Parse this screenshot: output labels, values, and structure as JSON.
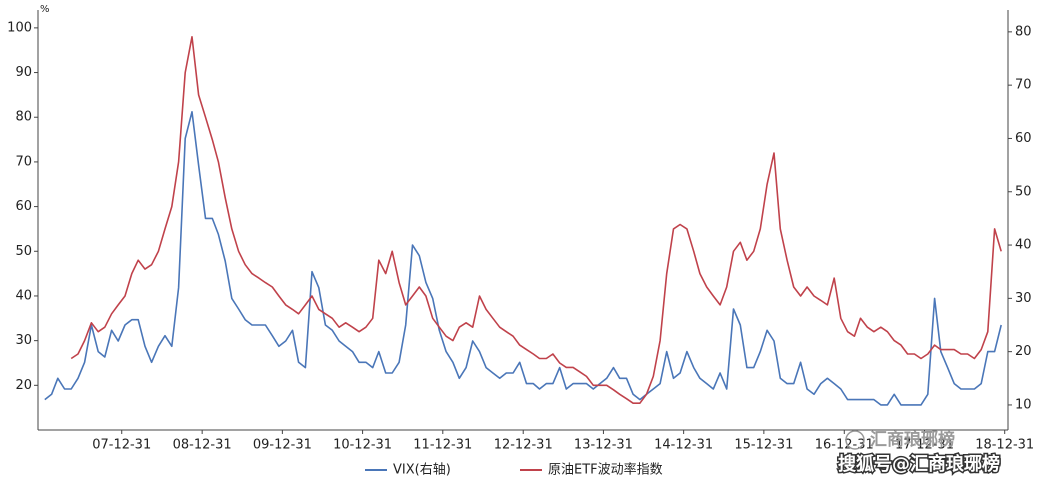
{
  "chart_data": {
    "type": "line",
    "y_label": "%",
    "x": [
      "07-01-15",
      "07-02-15",
      "07-03-15",
      "07-04-15",
      "07-05-15",
      "07-06-15",
      "07-07-15",
      "07-08-15",
      "07-09-15",
      "07-10-15",
      "07-11-15",
      "07-12-15",
      "08-01-15",
      "08-02-15",
      "08-03-15",
      "08-04-15",
      "08-05-15",
      "08-06-15",
      "08-07-15",
      "08-08-15",
      "08-09-15",
      "08-10-15",
      "08-11-15",
      "08-12-15",
      "09-01-15",
      "09-02-15",
      "09-03-15",
      "09-04-15",
      "09-05-15",
      "09-06-15",
      "09-07-15",
      "09-08-15",
      "09-09-15",
      "09-10-15",
      "09-11-15",
      "09-12-15",
      "10-01-15",
      "10-02-15",
      "10-03-15",
      "10-04-15",
      "10-05-15",
      "10-06-15",
      "10-07-15",
      "10-08-15",
      "10-09-15",
      "10-10-15",
      "10-11-15",
      "10-12-15",
      "11-01-15",
      "11-02-15",
      "11-03-15",
      "11-04-15",
      "11-05-15",
      "11-06-15",
      "11-07-15",
      "11-08-15",
      "11-09-15",
      "11-10-15",
      "11-11-15",
      "11-12-15",
      "12-01-15",
      "12-02-15",
      "12-03-15",
      "12-04-15",
      "12-05-15",
      "12-06-15",
      "12-07-15",
      "12-08-15",
      "12-09-15",
      "12-10-15",
      "12-11-15",
      "12-12-15",
      "13-01-15",
      "13-02-15",
      "13-03-15",
      "13-04-15",
      "13-05-15",
      "13-06-15",
      "13-07-15",
      "13-08-15",
      "13-09-15",
      "13-10-15",
      "13-11-15",
      "13-12-15",
      "14-01-15",
      "14-02-15",
      "14-03-15",
      "14-04-15",
      "14-05-15",
      "14-06-15",
      "14-07-15",
      "14-08-15",
      "14-09-15",
      "14-10-15",
      "14-11-15",
      "14-12-15",
      "15-01-15",
      "15-02-15",
      "15-03-15",
      "15-04-15",
      "15-05-15",
      "15-06-15",
      "15-07-15",
      "15-08-15",
      "15-09-15",
      "15-10-15",
      "15-11-15",
      "15-12-15",
      "16-01-15",
      "16-02-15",
      "16-03-15",
      "16-04-15",
      "16-05-15",
      "16-06-15",
      "16-07-15",
      "16-08-15",
      "16-09-15",
      "16-10-15",
      "16-11-15",
      "16-12-15",
      "17-01-15",
      "17-02-15",
      "17-03-15",
      "17-04-15",
      "17-05-15",
      "17-06-15",
      "17-07-15",
      "17-08-15",
      "17-09-15",
      "17-10-15",
      "17-11-15",
      "17-12-15",
      "18-01-15",
      "18-02-15",
      "18-03-15",
      "18-04-15",
      "18-05-15",
      "18-06-15",
      "18-07-15",
      "18-08-15",
      "18-09-15",
      "18-10-15",
      "18-11-15",
      "18-12-15"
    ],
    "xlim": [
      "06-12-15",
      "19-01-15"
    ],
    "xticks": [
      "07-12-31",
      "08-12-31",
      "09-12-31",
      "10-12-31",
      "11-12-31",
      "12-12-31",
      "13-12-31",
      "14-12-31",
      "15-12-31",
      "16-12-31",
      "17-12-31",
      "18-12-31"
    ],
    "ylim": [
      10,
      104
    ],
    "yticks": [
      20,
      30,
      40,
      50,
      60,
      70,
      80,
      90,
      100
    ],
    "y2lim": [
      5.3,
      84.1
    ],
    "y2ticks": [
      10,
      20,
      30,
      40,
      50,
      60,
      70,
      80
    ],
    "series": [
      {
        "name": "VIX(右轴)",
        "color": "#4a76b8",
        "axis": "y2",
        "values": [
          11,
          12,
          15,
          13,
          13,
          15,
          18,
          25,
          20,
          19,
          24,
          22,
          25,
          26,
          26,
          21,
          18,
          21,
          23,
          21,
          32,
          60,
          65,
          55,
          45,
          45,
          42,
          37,
          30,
          28,
          26,
          25,
          25,
          25,
          23,
          21,
          22,
          24,
          18,
          17,
          35,
          32,
          25,
          24,
          22,
          21,
          20,
          18,
          18,
          17,
          20,
          16,
          16,
          18,
          25,
          40,
          38,
          33,
          30,
          24,
          20,
          18,
          15,
          17,
          22,
          20,
          17,
          16,
          15,
          16,
          16,
          18,
          14,
          14,
          13,
          14,
          14,
          17,
          13,
          14,
          14,
          14,
          13,
          14,
          15,
          17,
          15,
          15,
          12,
          11,
          12,
          13,
          14,
          20,
          15,
          16,
          20,
          17,
          15,
          14,
          13,
          16,
          13,
          28,
          25,
          17,
          17,
          20,
          24,
          22,
          15,
          14,
          14,
          18,
          13,
          12,
          14,
          15,
          14,
          13,
          11,
          11,
          11,
          11,
          11,
          10,
          10,
          12,
          10,
          10,
          10,
          10,
          12,
          30,
          20,
          17,
          14,
          13,
          13,
          13,
          14,
          20,
          20,
          25
        ]
      },
      {
        "name": "原油ETF波动率指数",
        "color": "#c0424b",
        "values": [
          null,
          null,
          null,
          null,
          26,
          27,
          30,
          34,
          32,
          33,
          36,
          38,
          40,
          45,
          48,
          46,
          47,
          50,
          55,
          60,
          70,
          90,
          98,
          85,
          80,
          75,
          70,
          62,
          55,
          50,
          47,
          45,
          44,
          43,
          42,
          40,
          38,
          37,
          36,
          38,
          40,
          37,
          36,
          35,
          33,
          34,
          33,
          32,
          33,
          35,
          48,
          45,
          50,
          43,
          38,
          40,
          42,
          40,
          35,
          33,
          31,
          30,
          33,
          34,
          33,
          40,
          37,
          35,
          33,
          32,
          31,
          29,
          28,
          27,
          26,
          26,
          27,
          25,
          24,
          24,
          23,
          22,
          20,
          20,
          20,
          19,
          18,
          17,
          16,
          16,
          18,
          22,
          30,
          45,
          55,
          56,
          55,
          50,
          45,
          42,
          40,
          38,
          42,
          50,
          52,
          48,
          50,
          55,
          65,
          72,
          55,
          48,
          42,
          40,
          42,
          40,
          39,
          38,
          44,
          35,
          32,
          31,
          35,
          33,
          32,
          33,
          32,
          30,
          29,
          27,
          27,
          26,
          27,
          29,
          28,
          28,
          28,
          27,
          27,
          26,
          28,
          32,
          55,
          50
        ]
      }
    ],
    "watermark": "汇商琅琊榜",
    "source": "搜狐号@汇商琅琊榜"
  }
}
